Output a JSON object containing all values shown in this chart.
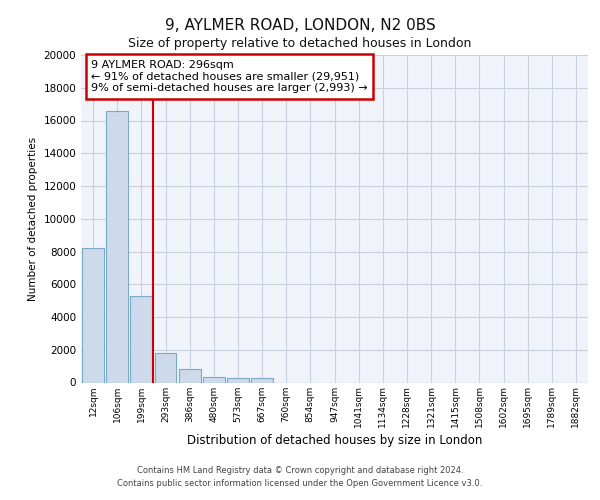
{
  "title1": "9, AYLMER ROAD, LONDON, N2 0BS",
  "title2": "Size of property relative to detached houses in London",
  "xlabel": "Distribution of detached houses by size in London",
  "ylabel": "Number of detached properties",
  "footnote1": "Contains HM Land Registry data © Crown copyright and database right 2024.",
  "footnote2": "Contains public sector information licensed under the Open Government Licence v3.0.",
  "categories": [
    "12sqm",
    "106sqm",
    "199sqm",
    "293sqm",
    "386sqm",
    "480sqm",
    "573sqm",
    "667sqm",
    "760sqm",
    "854sqm",
    "947sqm",
    "1041sqm",
    "1134sqm",
    "1228sqm",
    "1321sqm",
    "1415sqm",
    "1508sqm",
    "1602sqm",
    "1695sqm",
    "1789sqm",
    "1882sqm"
  ],
  "values": [
    8200,
    16600,
    5300,
    1800,
    800,
    350,
    250,
    250,
    0,
    0,
    0,
    0,
    0,
    0,
    0,
    0,
    0,
    0,
    0,
    0,
    0
  ],
  "bar_color": "#ccdaeb",
  "bar_edge_color": "#7aaac8",
  "property_line_x": 2.5,
  "property_sqm": 296,
  "pct_smaller": 91,
  "n_smaller": 29951,
  "pct_larger": 9,
  "n_larger": 2993,
  "annotation_box_color": "#cc0000",
  "annotation_text_color": "#000000",
  "background_color": "#f0f4fa",
  "grid_color": "#c8d0dc",
  "ylim": [
    0,
    20000
  ],
  "yticks": [
    0,
    2000,
    4000,
    6000,
    8000,
    10000,
    12000,
    14000,
    16000,
    18000,
    20000
  ]
}
